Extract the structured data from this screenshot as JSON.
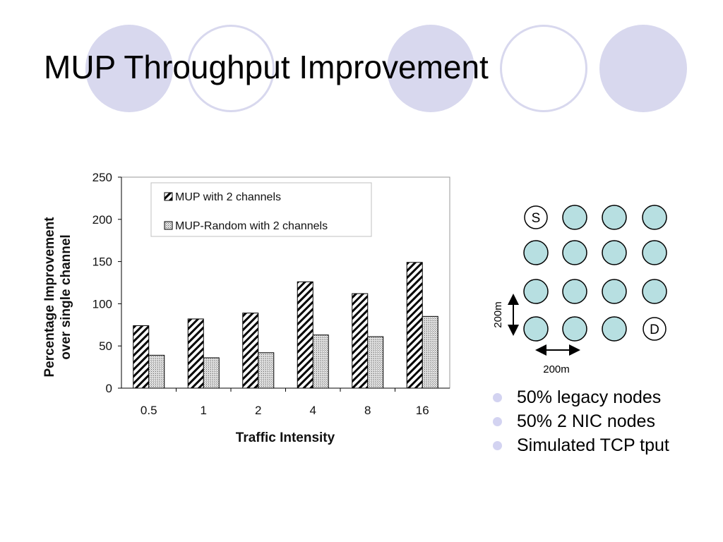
{
  "slide": {
    "title": "MUP Throughput Improvement",
    "accent_color": "#d8d8ee",
    "bullet_color": "#d3d3f1",
    "bullets": [
      "50% legacy nodes",
      "50% 2 NIC nodes",
      "Simulated TCP tput"
    ]
  },
  "chart_data": {
    "type": "bar",
    "title": "",
    "xlabel": "Traffic Intensity",
    "ylabel_line1": "Percentage Improvement",
    "ylabel_line2": "over single channel",
    "ylim": [
      0,
      250
    ],
    "yticks": [
      0,
      50,
      100,
      150,
      200,
      250
    ],
    "categories": [
      "0.5",
      "1",
      "2",
      "4",
      "8",
      "16"
    ],
    "series": [
      {
        "name": "MUP with 2 channels",
        "pattern": "diagonal-hatch",
        "values": [
          74,
          82,
          89,
          126,
          112,
          149
        ]
      },
      {
        "name": "MUP-Random with 2 channels",
        "pattern": "dotted",
        "values": [
          39,
          36,
          42,
          63,
          61,
          85
        ]
      }
    ],
    "legend": "top-left",
    "grid": false
  },
  "diagram": {
    "source_label": "S",
    "dest_label": "D",
    "vertical_distance": "200m",
    "horizontal_distance": "200m",
    "node_color": "#b7dfe1",
    "grid_rows": 4,
    "grid_cols": 4
  }
}
